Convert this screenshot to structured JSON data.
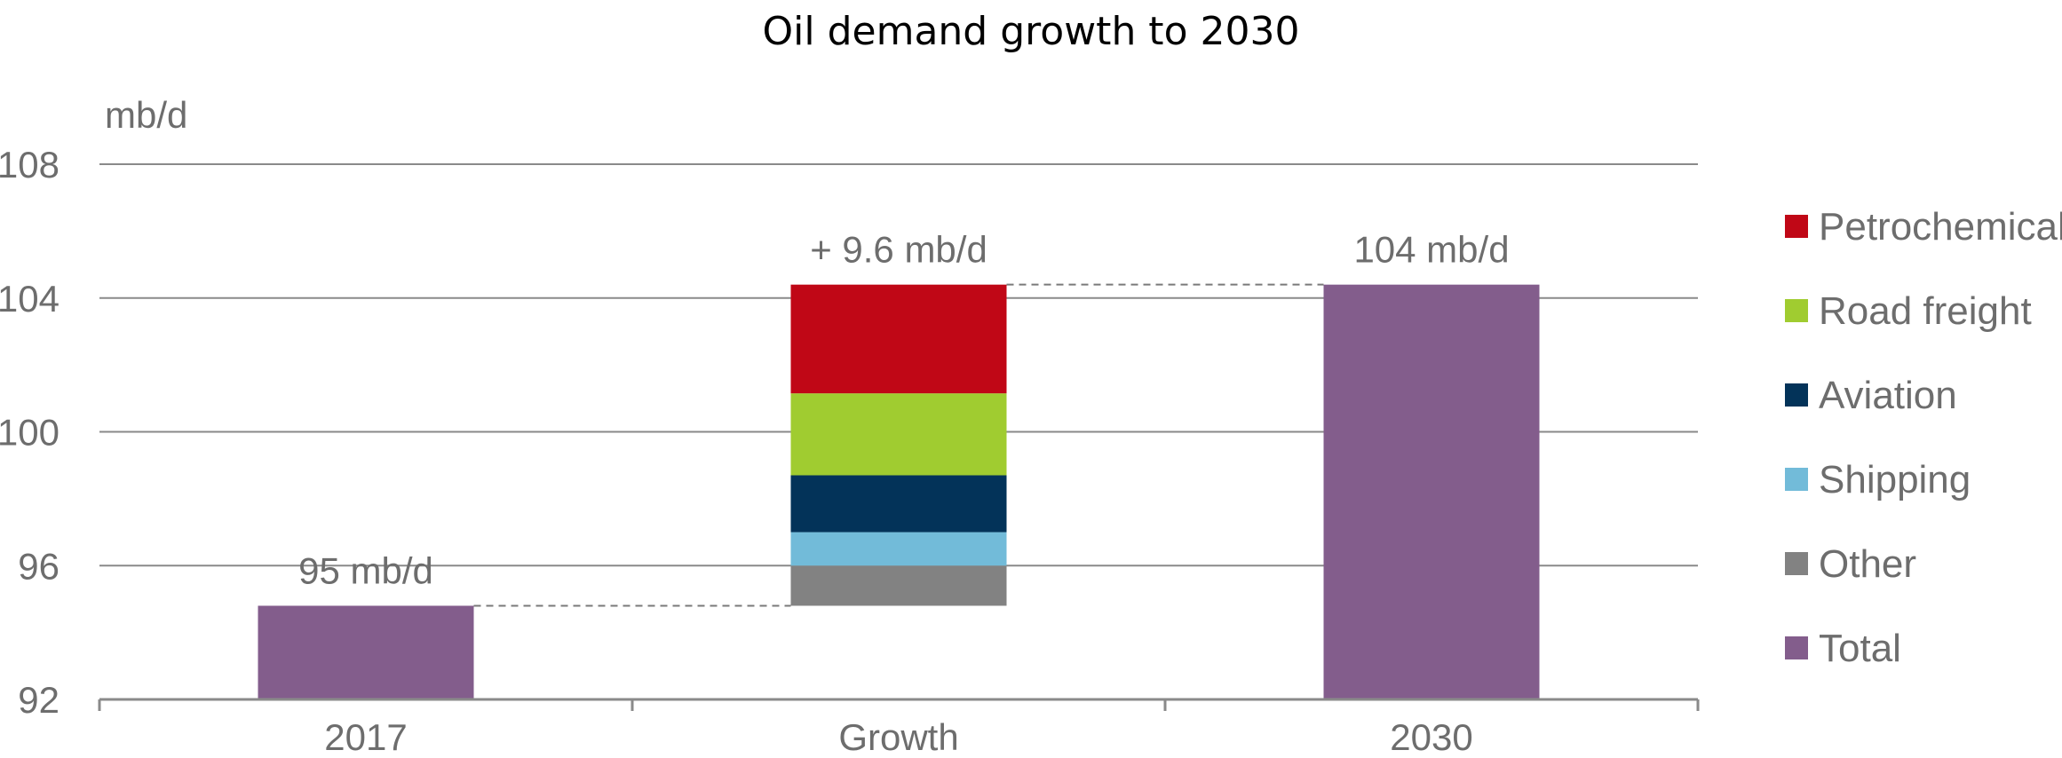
{
  "chart_data": {
    "type": "bar",
    "subtype": "waterfall-stacked",
    "title": "Oil demand growth to 2030",
    "ylabel": "mb/d",
    "xlabel": "",
    "ylim": [
      92,
      108
    ],
    "yticks": [
      "92",
      "96",
      "100",
      "104",
      "108"
    ],
    "ytick_values": [
      92,
      96,
      100,
      104,
      108
    ],
    "grid": true,
    "legend_position": "right",
    "categories": [
      "2017",
      "Growth",
      "2030"
    ],
    "base_start": 92,
    "total_2017": 94.8,
    "total_2030": 104.4,
    "growth_start": 94.8,
    "growth_components": [
      {
        "name": "Other",
        "value": 1.2
      },
      {
        "name": "Shipping",
        "value": 1.0
      },
      {
        "name": "Aviation",
        "value": 1.7
      },
      {
        "name": "Road freight",
        "value": 2.45
      },
      {
        "name": "Petrochemicals",
        "value": 3.25
      }
    ],
    "data_labels": {
      "2017": "95 mb/d",
      "Growth": "+ 9.6 mb/d",
      "2030": "104 mb/d"
    },
    "legend": [
      {
        "name": "Petrochemicals",
        "color": "#c00716"
      },
      {
        "name": "Road freight",
        "color": "#a0cc30"
      },
      {
        "name": "Aviation",
        "color": "#033359"
      },
      {
        "name": "Shipping",
        "color": "#72bbd9"
      },
      {
        "name": "Other",
        "color": "#828282"
      },
      {
        "name": "Total",
        "color": "#835d8c"
      }
    ]
  }
}
